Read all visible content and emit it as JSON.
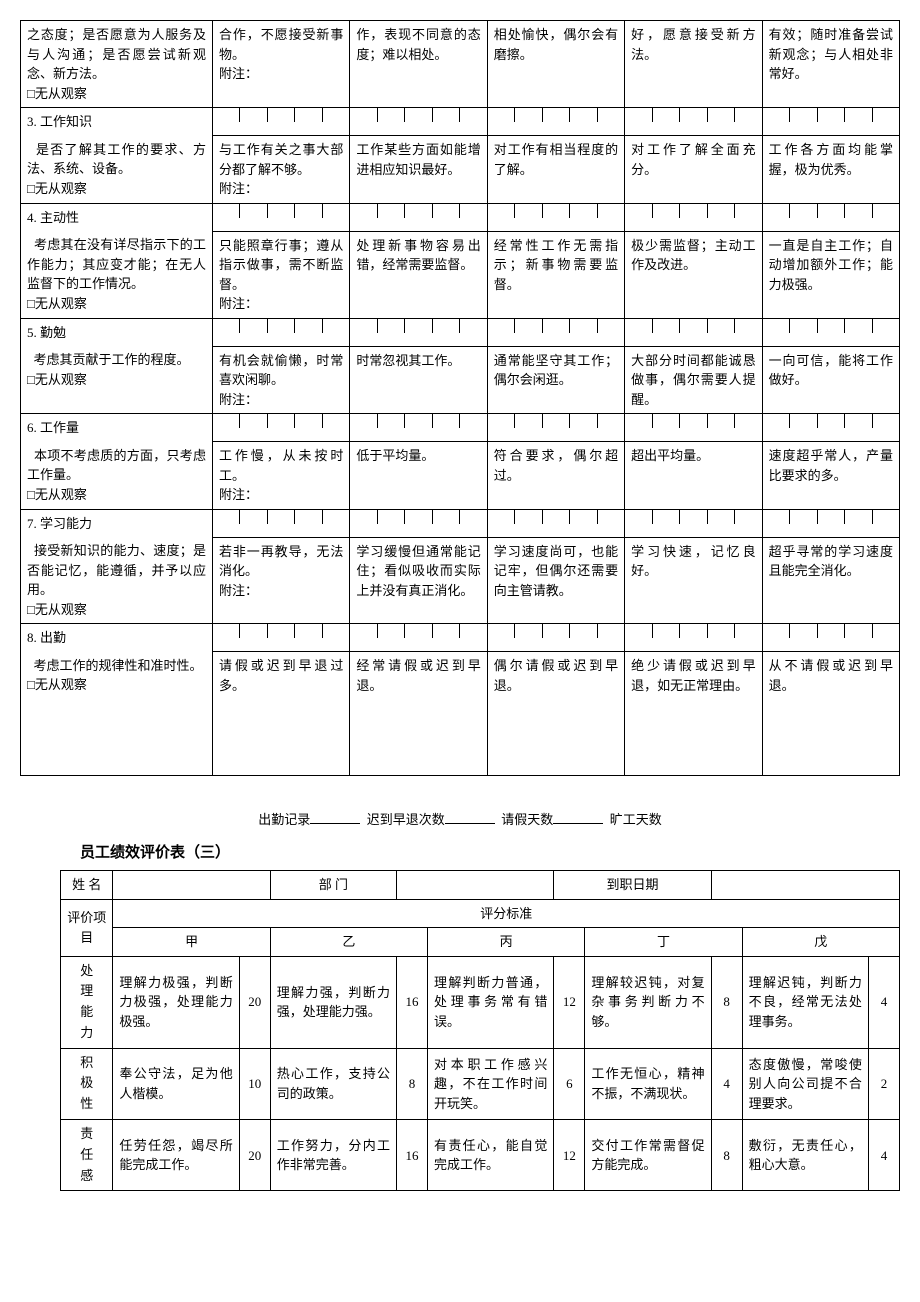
{
  "top_rows": [
    {
      "label": "之态度；是否愿意为人服务及与人沟通；是否愿尝试新观念、新方法。\n□无从观察",
      "opts": [
        "合作，不愿接受新事物。\n附注：",
        "作，表现不同意的态度；难以相处。",
        "相处愉快，偶尔会有磨擦。",
        "好，愿意接受新方法。",
        "有效；随时准备尝试新观念；与人相处非常好。"
      ]
    },
    {
      "num": "3. 工作知识",
      "label": "是否了解其工作的要求、方法、系统、设备。\n□无从观察",
      "opts": [
        "与工作有关之事大部分都了解不够。\n附注：",
        "工作某些方面如能增进相应知识最好。",
        "对工作有相当程度的了解。",
        "对工作了解全面充分。",
        "工作各方面均能掌握，极为优秀。"
      ]
    },
    {
      "num": "4. 主动性",
      "label": "考虑其在没有详尽指示下的工作能力；其应变才能；在无人监督下的工作情况。\n□无从观察",
      "opts": [
        "只能照章行事；遵从指示做事，需不断监督。\n附注：",
        "处理新事物容易出错，经常需要监督。",
        "经常性工作无需指示；新事物需要监督。",
        "极少需监督；主动工作及改进。",
        "一直是自主工作；自动增加额外工作；能力极强。"
      ]
    },
    {
      "num": "5. 勤勉",
      "label": "考虑其贡献于工作的程度。\n□无从观察",
      "opts": [
        "有机会就偷懒，时常喜欢闲聊。\n附注：",
        "时常忽视其工作。",
        "通常能坚守其工作；偶尔会闲逛。",
        "大部分时间都能诚恳做事，偶尔需要人提醒。",
        "一向可信，能将工作做好。"
      ]
    },
    {
      "num": "6. 工作量",
      "label": "本项不考虑质的方面，只考虑工作量。\n□无从观察",
      "opts": [
        "工作慢，从未按时工。\n附注：",
        "低于平均量。",
        "符合要求，偶尔超过。",
        "超出平均量。",
        "速度超乎常人，产量比要求的多。"
      ]
    },
    {
      "num": "7. 学习能力",
      "label": "接受新知识的能力、速度；是否能记忆，能遵循，并予以应用。\n□无从观察",
      "opts": [
        "若非一再教导，无法消化。\n附注：",
        "学习缓慢但通常能记住；看似吸收而实际上并没有真正消化。",
        "学习速度尚可，也能记牢，但偶尔还需要向主管请教。",
        "学习快速，记忆良好。",
        "超乎寻常的学习速度且能完全消化。"
      ]
    },
    {
      "num": "8. 出勤",
      "label": "考虑工作的规律性和准时性。\n□无从观察",
      "opts": [
        "请假或迟到早退过多。",
        "经常请假或迟到早退。",
        "偶尔请假或迟到早退。",
        "绝少请假或迟到早退，如无正常理由。",
        "从不请假或迟到早退。"
      ]
    }
  ],
  "attendance": {
    "prefix": "出勤记录",
    "f1": "迟到早退次数",
    "f2": "请假天数",
    "f3": "旷工天数"
  },
  "title2": "员工绩效评价表（三）",
  "form2": {
    "name_label": "姓  名",
    "dept_label": "部  门",
    "date_label": "到职日期",
    "eval_item": "评价项目",
    "eval_std": "评分标准",
    "grades": [
      "甲",
      "乙",
      "丙",
      "丁",
      "戊"
    ],
    "rows": [
      {
        "label": "处理能力",
        "cells": [
          {
            "desc": "理解力极强，判断力极强，处理能力极强。",
            "score": "20"
          },
          {
            "desc": "理解力强，判断力强，处理能力强。",
            "score": "16"
          },
          {
            "desc": "理解判断力普通，处理事务常有错误。",
            "score": "12"
          },
          {
            "desc": "理解较迟钝，对复杂事务判断力不够。",
            "score": "8"
          },
          {
            "desc": "理解迟钝，判断力不良，经常无法处理事务。",
            "score": "4"
          }
        ]
      },
      {
        "label": "积极性",
        "cells": [
          {
            "desc": "奉公守法，足为他人楷模。",
            "score": "10"
          },
          {
            "desc": "热心工作，支持公司的政策。",
            "score": "8"
          },
          {
            "desc": "对本职工作感兴趣，不在工作时间开玩笑。",
            "score": "6"
          },
          {
            "desc": "工作无恒心，精神不振，不满现状。",
            "score": "4"
          },
          {
            "desc": "态度傲慢，常唆使别人向公司提不合理要求。",
            "score": "2"
          }
        ]
      },
      {
        "label": "责任感",
        "cells": [
          {
            "desc": "任劳任怨，竭尽所能完成工作。",
            "score": "20"
          },
          {
            "desc": "工作努力，分内工作非常完善。",
            "score": "16"
          },
          {
            "desc": "有责任心，能自觉完成工作。",
            "score": "12"
          },
          {
            "desc": "交付工作常需督促方能完成。",
            "score": "8"
          },
          {
            "desc": "敷衍，无责任心，粗心大意。",
            "score": "4"
          }
        ]
      }
    ]
  }
}
